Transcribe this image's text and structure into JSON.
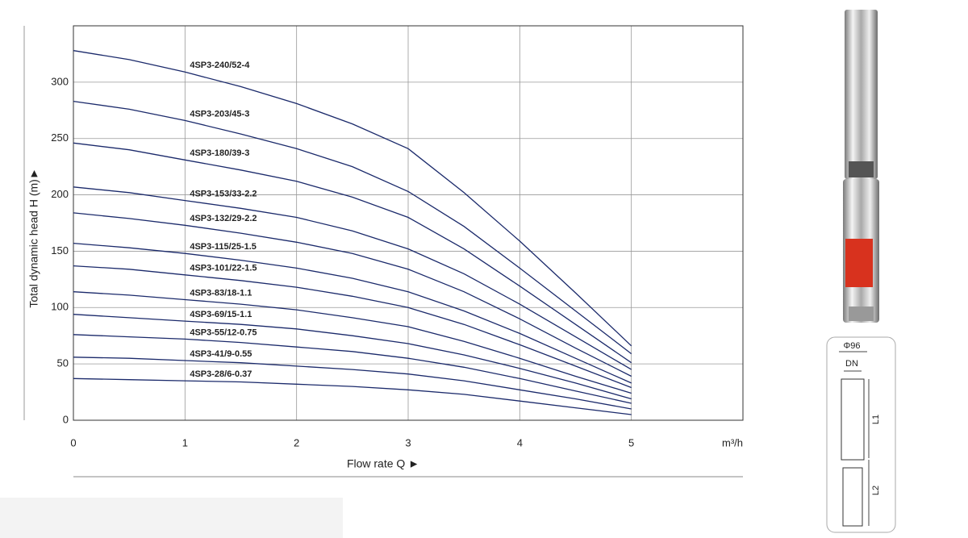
{
  "chart_data": {
    "type": "line",
    "xlabel": "Flow rate Q  ►",
    "ylabel": "Total dynamic head H (m)►",
    "xlim": [
      0,
      6
    ],
    "xticks": [
      0,
      1,
      2,
      3,
      4,
      5,
      {
        "value": 6,
        "label": "m³/h"
      }
    ],
    "ylim": [
      0,
      350
    ],
    "yticks": [
      0,
      50,
      100,
      150,
      200,
      250,
      300
    ],
    "grid": true,
    "x": [
      0,
      0.5,
      1,
      1.5,
      2,
      2.5,
      3,
      3.5,
      4,
      4.5,
      5
    ],
    "series": [
      {
        "name": "4SP3-240/52-4",
        "color": "#1b2a6b",
        "values": [
          328,
          320,
          309,
          296,
          281,
          263,
          241,
          202,
          159,
          113,
          66
        ]
      },
      {
        "name": "4SP3-203/45-3",
        "color": "#1b2a6b",
        "values": [
          283,
          276,
          266,
          254,
          241,
          225,
          203,
          172,
          135,
          97,
          59
        ]
      },
      {
        "name": "4SP3-180/39-3",
        "color": "#1b2a6b",
        "values": [
          246,
          240,
          231,
          222,
          212,
          198,
          180,
          152,
          119,
          85,
          51
        ]
      },
      {
        "name": "4SP3-153/33-2.2",
        "color": "#1b2a6b",
        "values": [
          207,
          202,
          195,
          188,
          180,
          168,
          152,
          130,
          103,
          74,
          45
        ]
      },
      {
        "name": "4SP3-132/29-2.2",
        "color": "#1b2a6b",
        "values": [
          184,
          179,
          173,
          166,
          158,
          148,
          134,
          114,
          90,
          64,
          39
        ]
      },
      {
        "name": "4SP3-115/25-1.5",
        "color": "#1b2a6b",
        "values": [
          157,
          153,
          148,
          142,
          135,
          126,
          114,
          97,
          77,
          55,
          33
        ]
      },
      {
        "name": "4SP3-101/22-1.5",
        "color": "#1b2a6b",
        "values": [
          137,
          134,
          129,
          124,
          118,
          110,
          100,
          85,
          67,
          48,
          29
        ]
      },
      {
        "name": "4SP3-83/18-1.1",
        "color": "#1b2a6b",
        "values": [
          114,
          111,
          107,
          103,
          98,
          91,
          83,
          70,
          55,
          39,
          24
        ]
      },
      {
        "name": "4SP3-69/15-1.1",
        "color": "#1b2a6b",
        "values": [
          94,
          91,
          88,
          85,
          81,
          75,
          68,
          58,
          46,
          33,
          19
        ]
      },
      {
        "name": "4SP3-55/12-0.75",
        "color": "#1b2a6b",
        "values": [
          76,
          74,
          72,
          69,
          65,
          61,
          55,
          47,
          37,
          26,
          15
        ]
      },
      {
        "name": "4SP3-41/9-0.55",
        "color": "#1b2a6b",
        "values": [
          56,
          55,
          53,
          51,
          48,
          45,
          41,
          35,
          27,
          19,
          10
        ]
      },
      {
        "name": "4SP3-28/6-0.37",
        "color": "#1b2a6b",
        "values": [
          37,
          36,
          35,
          34,
          32,
          30,
          27,
          23,
          17,
          11,
          5
        ]
      }
    ]
  },
  "drawing": {
    "diameter": "Φ96",
    "dn": "DN",
    "l1": "L1",
    "l2": "L2"
  }
}
